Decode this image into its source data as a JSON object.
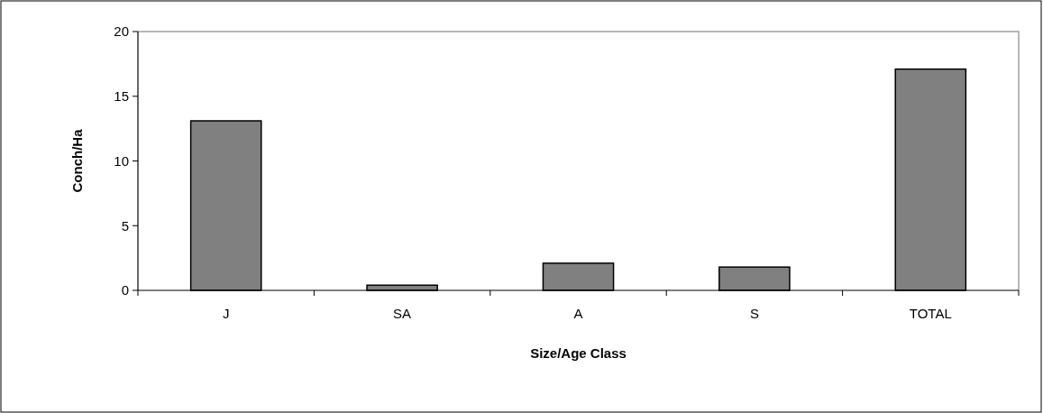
{
  "chart_data": {
    "type": "bar",
    "xlabel": "Size/Age Class",
    "ylabel": "Conch/Ha",
    "categories": [
      "J",
      "SA",
      "A",
      "S",
      "TOTAL"
    ],
    "values": [
      13.1,
      0.4,
      2.1,
      1.8,
      17.1
    ],
    "color": "#808080",
    "ylim": [
      0,
      20
    ],
    "yticks": [
      0,
      5,
      10,
      15,
      20
    ],
    "grid": false
  }
}
